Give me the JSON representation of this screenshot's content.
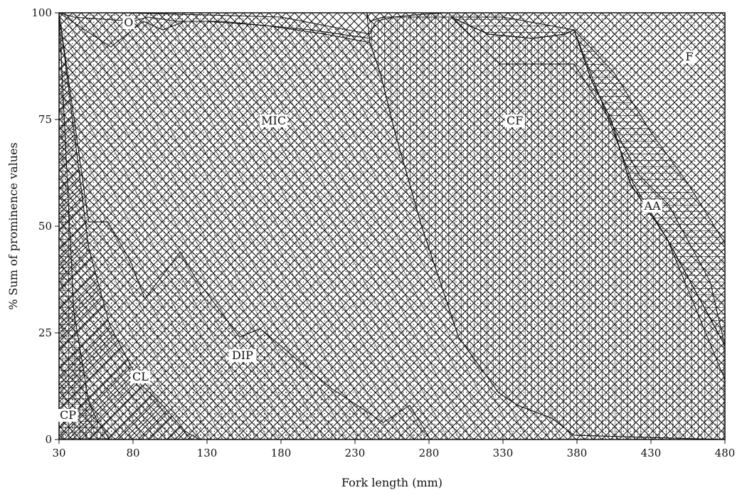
{
  "chart_data": {
    "type": "area",
    "title": "",
    "xlabel": "Fork length (mm)",
    "ylabel": "% Sum of prominence values",
    "xlim": [
      30,
      480
    ],
    "ylim": [
      0,
      100
    ],
    "x_ticks": [
      "30",
      "80",
      "130",
      "180",
      "230",
      "280",
      "330",
      "380",
      "430",
      "480"
    ],
    "y_ticks": [
      "0",
      "25",
      "50",
      "75",
      "100"
    ],
    "grid": false,
    "legend": "none",
    "stacking_order_bottom_to_top": [
      "CP",
      "CL",
      "DIP",
      "MIC",
      "O",
      "CF",
      "AA",
      "F"
    ],
    "boundaries": [
      {
        "name": "CP",
        "points": [
          [
            30,
            100
          ],
          [
            40,
            30
          ],
          [
            50,
            9
          ],
          [
            55,
            5
          ],
          [
            64,
            0
          ],
          [
            480,
            0
          ]
        ]
      },
      {
        "name": "CL",
        "points": [
          [
            30,
            100
          ],
          [
            50,
            45
          ],
          [
            64,
            27
          ],
          [
            67,
            25
          ],
          [
            85,
            13
          ],
          [
            100,
            8
          ],
          [
            115,
            2
          ],
          [
            125,
            0
          ],
          [
            480,
            0
          ]
        ]
      },
      {
        "name": "DIP",
        "points": [
          [
            30,
            100
          ],
          [
            50,
            51
          ],
          [
            63,
            51
          ],
          [
            78,
            42
          ],
          [
            88,
            33
          ],
          [
            112,
            44
          ],
          [
            122,
            38
          ],
          [
            152,
            24
          ],
          [
            166,
            26
          ],
          [
            214,
            12
          ],
          [
            249,
            4
          ],
          [
            267,
            8
          ],
          [
            281,
            0
          ],
          [
            480,
            0
          ]
        ]
      },
      {
        "name": "MIC",
        "points": [
          [
            30,
            100
          ],
          [
            40,
            99
          ],
          [
            80,
            98
          ],
          [
            90,
            99
          ],
          [
            110,
            98
          ],
          [
            130,
            98
          ],
          [
            170,
            97
          ],
          [
            210,
            95
          ],
          [
            240,
            93
          ],
          [
            247,
            86
          ],
          [
            257,
            72
          ],
          [
            275,
            50
          ],
          [
            300,
            24
          ],
          [
            327,
            11
          ],
          [
            340,
            8
          ],
          [
            363,
            5
          ],
          [
            378,
            1
          ],
          [
            480,
            0
          ]
        ]
      },
      {
        "name": "O",
        "points": [
          [
            30,
            100
          ],
          [
            70,
            100
          ],
          [
            130,
            99.5
          ],
          [
            180,
            99
          ],
          [
            210,
            97
          ],
          [
            240,
            95
          ],
          [
            244,
            98
          ],
          [
            256,
            99
          ],
          [
            270,
            99.5
          ],
          [
            292,
            100
          ],
          [
            480,
            100
          ]
        ]
      },
      {
        "name": "CF",
        "points": [
          [
            30,
            100
          ],
          [
            480,
            100
          ]
        ]
      },
      {
        "name": "AA",
        "points": [
          [
            30,
            100
          ],
          [
            480,
            100
          ]
        ]
      }
    ],
    "lines": [
      {
        "points": [
          [
            30,
            100
          ],
          [
            65,
            92
          ],
          [
            87,
            98
          ],
          [
            100,
            96
          ],
          [
            115,
            98
          ],
          [
            140,
            98
          ],
          [
            200,
            96
          ],
          [
            240,
            94
          ]
        ]
      },
      {
        "points": [
          [
            240,
            98
          ],
          [
            249,
            99
          ],
          [
            295,
            99
          ],
          [
            328,
            88
          ],
          [
            352,
            88
          ],
          [
            363,
            88
          ],
          [
            378,
            88
          ],
          [
            402,
            75
          ],
          [
            422,
            62
          ],
          [
            442,
            55
          ],
          [
            470,
            37
          ],
          [
            480,
            22
          ]
        ]
      },
      {
        "points": [
          [
            295,
            99
          ],
          [
            320,
            95
          ],
          [
            350,
            94
          ],
          [
            372,
            95
          ],
          [
            378,
            96
          ],
          [
            418,
            60
          ],
          [
            441,
            47
          ],
          [
            480,
            14
          ]
        ]
      },
      {
        "points": [
          [
            378,
            96
          ],
          [
            390,
            84
          ],
          [
            403,
            75
          ],
          [
            416,
            60
          ],
          [
            441,
            47
          ],
          [
            480,
            22
          ]
        ]
      }
    ],
    "series": [
      {
        "name": "CP",
        "label_at": [
          36,
          5
        ]
      },
      {
        "name": "CL",
        "label_at": [
          85,
          14
        ]
      },
      {
        "name": "DIP",
        "label_at": [
          154,
          19
        ]
      },
      {
        "name": "MIC",
        "label_at": [
          175,
          74
        ]
      },
      {
        "name": "O",
        "label_at": [
          77,
          97
        ]
      },
      {
        "name": "CF",
        "label_at": [
          338,
          74
        ]
      },
      {
        "name": "AA",
        "label_at": [
          431,
          54
        ]
      },
      {
        "name": "F",
        "label_at": [
          456,
          89
        ]
      }
    ]
  }
}
